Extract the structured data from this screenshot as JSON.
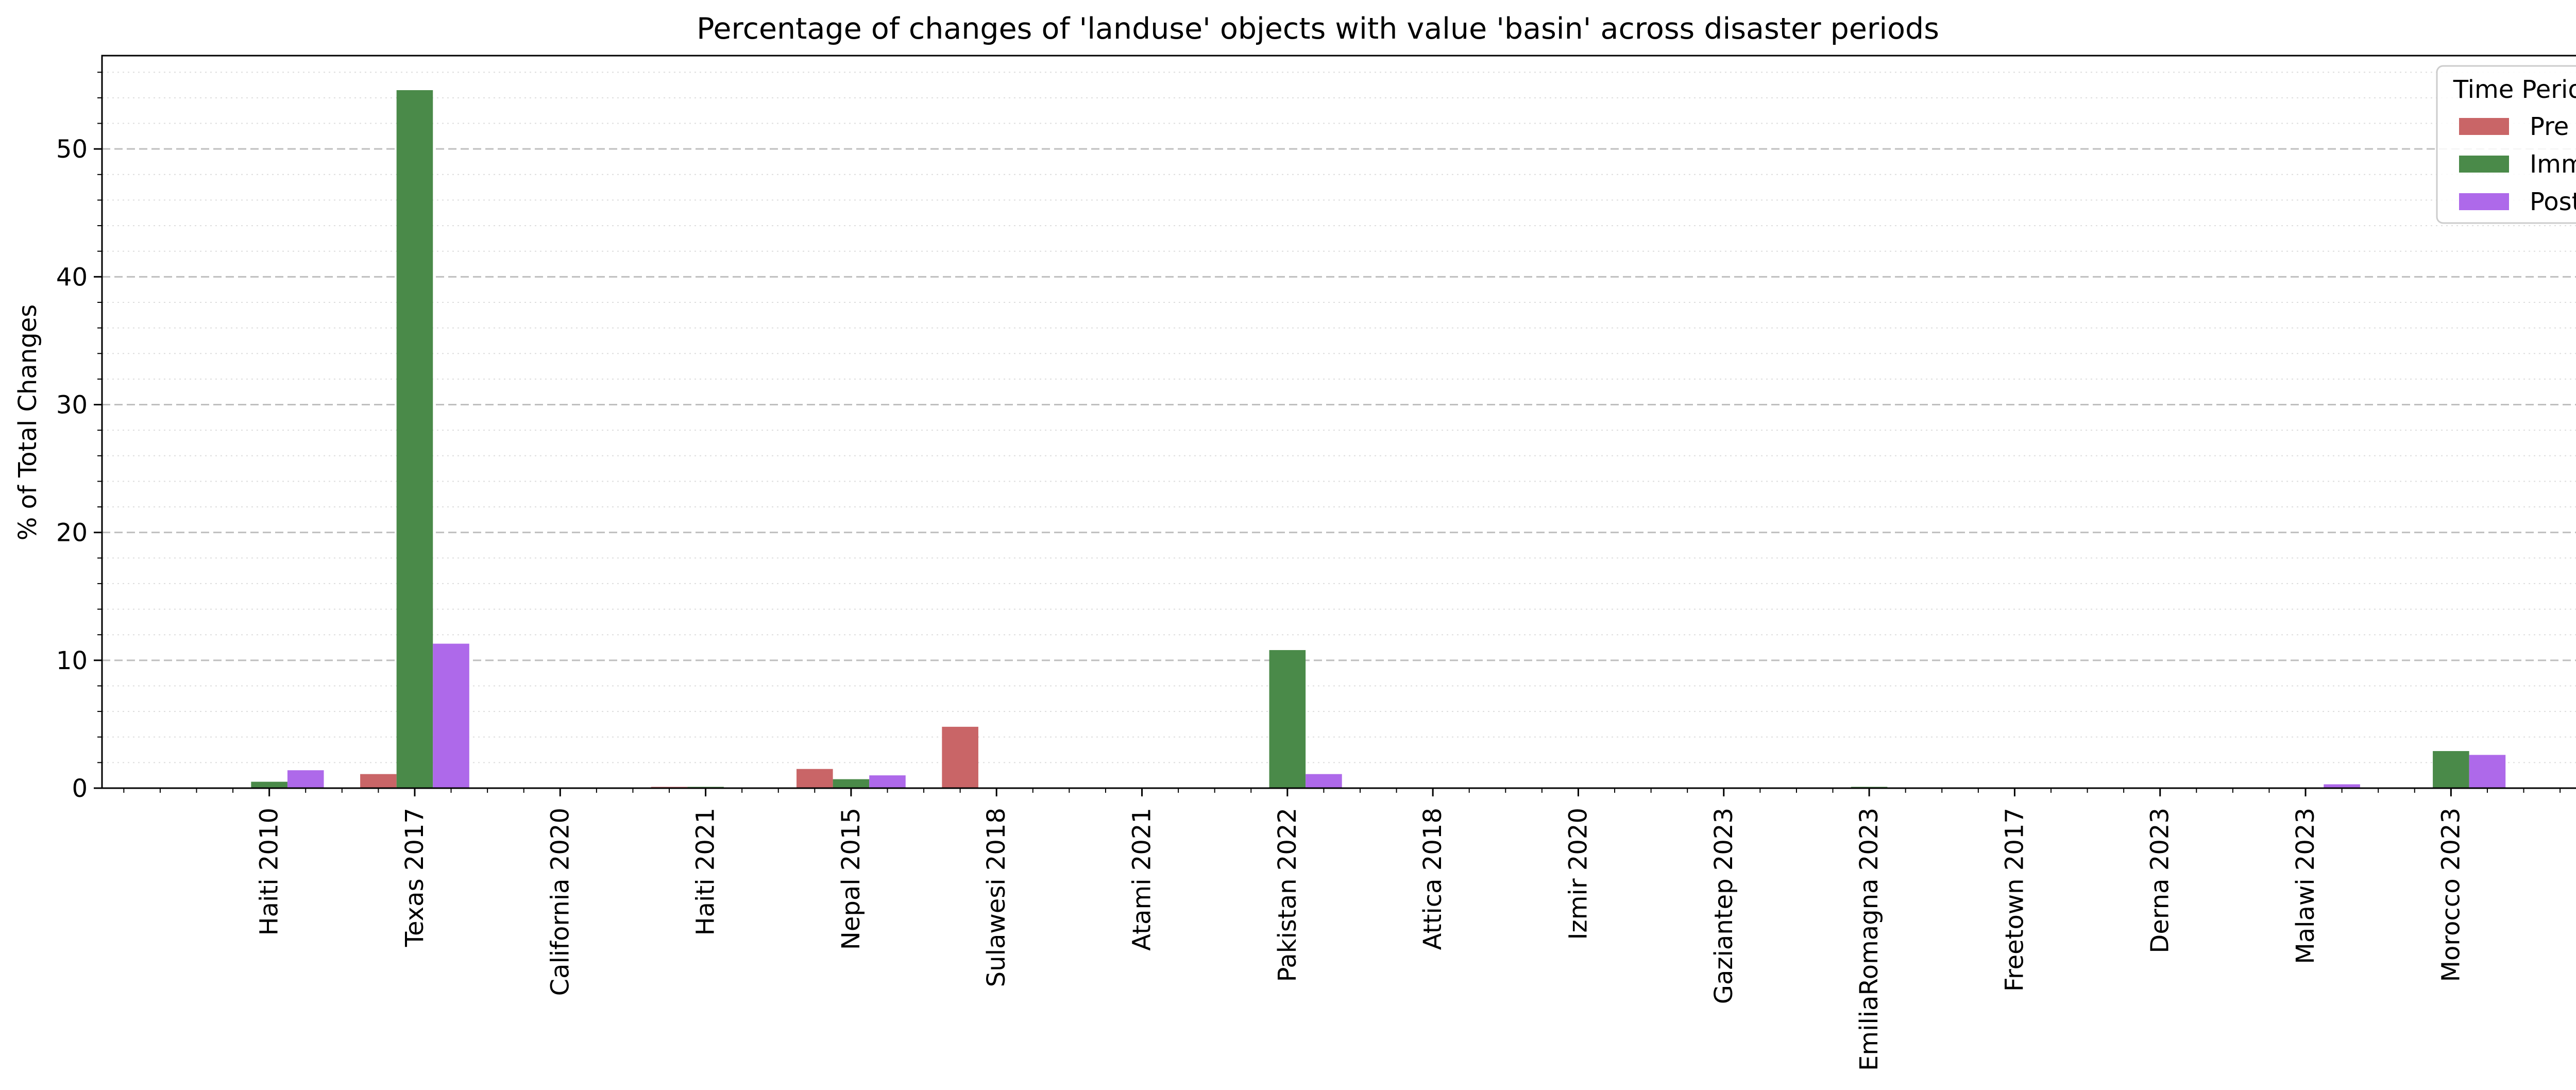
{
  "chart_data": {
    "type": "bar",
    "title": "Percentage of changes of 'landuse' objects with value 'basin' across disaster periods",
    "xlabel": "",
    "ylabel": "% of Total Changes",
    "ylim": [
      0,
      57.3
    ],
    "yticks": [
      0,
      10,
      20,
      30,
      40,
      50
    ],
    "grid": "horizontal major dashed, minor dotted",
    "legend": {
      "title": "Time Period",
      "placement": "top-right"
    },
    "categories": [
      "Haiti 2010",
      "Texas 2017",
      "California 2020",
      "Haiti 2021",
      "Nepal 2015",
      "Sulawesi 2018",
      "Atami 2021",
      "Pakistan 2022",
      "Attica 2018",
      "Izmir 2020",
      "Gaziantep 2023",
      "EmiliaRomagna 2023",
      "Freetown 2017",
      "Derna 2023",
      "Malawi 2023",
      "Morocco 2023"
    ],
    "series": [
      {
        "name": "Pre",
        "color": "#c96567",
        "values": [
          0,
          1.1,
          0,
          0.1,
          1.5,
          4.8,
          0,
          0,
          0,
          0,
          0,
          0,
          0,
          0,
          0,
          0
        ]
      },
      {
        "name": "Imm",
        "color": "#4a8a49",
        "values": [
          0.5,
          54.6,
          0,
          0.1,
          0.7,
          0,
          0,
          10.8,
          0,
          0,
          0,
          0.1,
          0,
          0,
          0,
          2.9
        ]
      },
      {
        "name": "Post",
        "color": "#ae69ea",
        "values": [
          1.4,
          11.3,
          0,
          0,
          1.0,
          0,
          0,
          1.1,
          0,
          0,
          0,
          0,
          0,
          0,
          0.3,
          2.6
        ]
      }
    ]
  }
}
